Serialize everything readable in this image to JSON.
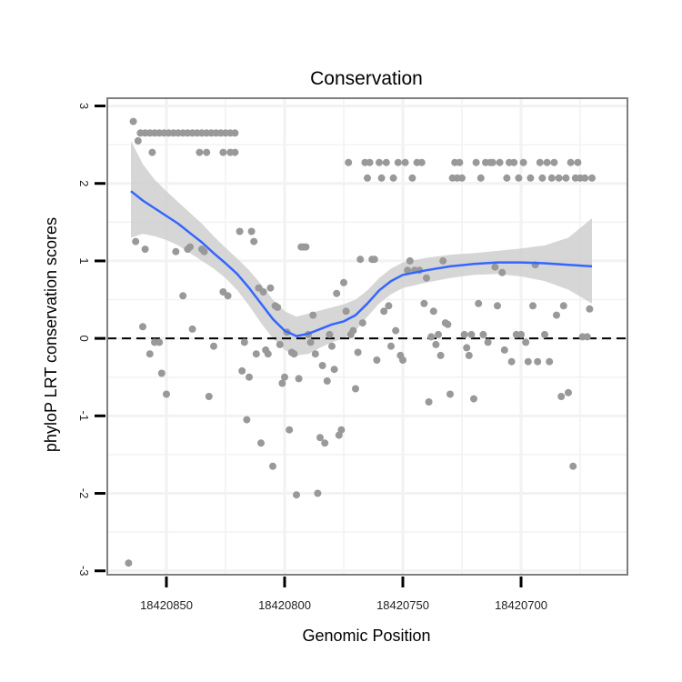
{
  "chart_data": {
    "type": "scatter",
    "title": "Conservation",
    "xlabel": "Genomic Position",
    "ylabel": "phyloP LRT conservation scores",
    "x_reversed": true,
    "xlim": [
      18420875,
      18420655
    ],
    "ylim": [
      -3.05,
      3.1
    ],
    "x_ticks": [
      18420850,
      18420800,
      18420750,
      18420700
    ],
    "x_tick_labels": [
      "18420850",
      "18420800",
      "18420750",
      "18420700"
    ],
    "y_ticks": [
      -3,
      -2,
      -1,
      0,
      1,
      2,
      3
    ],
    "y_tick_labels": [
      "-3",
      "-2",
      "-1",
      "0",
      "1",
      "2",
      "3"
    ],
    "reference_line": {
      "y": 0,
      "style": "dashed"
    },
    "grid": true,
    "colors": {
      "points": "#999999",
      "smooth_line": "#3366ff",
      "confidence_band": "#cccccc",
      "grid": "#f2f2f2",
      "panel_border": "#7f7f7f",
      "reference_line": "#000000"
    },
    "points": [
      {
        "x": 18420864,
        "y": 2.8
      },
      {
        "x": 18420862,
        "y": 2.55
      },
      {
        "x": 18420861,
        "y": 2.65
      },
      {
        "x": 18420859,
        "y": 2.65
      },
      {
        "x": 18420857,
        "y": 2.65
      },
      {
        "x": 18420855,
        "y": 2.65
      },
      {
        "x": 18420853,
        "y": 2.65
      },
      {
        "x": 18420851,
        "y": 2.65
      },
      {
        "x": 18420849,
        "y": 2.65
      },
      {
        "x": 18420847,
        "y": 2.65
      },
      {
        "x": 18420845,
        "y": 2.65
      },
      {
        "x": 18420843,
        "y": 2.65
      },
      {
        "x": 18420841,
        "y": 2.65
      },
      {
        "x": 18420839,
        "y": 2.65
      },
      {
        "x": 18420837,
        "y": 2.65
      },
      {
        "x": 18420835,
        "y": 2.65
      },
      {
        "x": 18420833,
        "y": 2.65
      },
      {
        "x": 18420831,
        "y": 2.65
      },
      {
        "x": 18420829,
        "y": 2.65
      },
      {
        "x": 18420827,
        "y": 2.65
      },
      {
        "x": 18420825,
        "y": 2.65
      },
      {
        "x": 18420823,
        "y": 2.65
      },
      {
        "x": 18420821,
        "y": 2.65
      },
      {
        "x": 18420856,
        "y": 2.4
      },
      {
        "x": 18420836,
        "y": 2.4
      },
      {
        "x": 18420833,
        "y": 2.4
      },
      {
        "x": 18420826,
        "y": 2.4
      },
      {
        "x": 18420823,
        "y": 2.4
      },
      {
        "x": 18420821,
        "y": 2.4
      },
      {
        "x": 18420863,
        "y": 1.25
      },
      {
        "x": 18420860,
        "y": 0.15
      },
      {
        "x": 18420859,
        "y": 1.15
      },
      {
        "x": 18420857,
        "y": -0.2
      },
      {
        "x": 18420855,
        "y": -0.05
      },
      {
        "x": 18420853,
        "y": -0.05
      },
      {
        "x": 18420852,
        "y": -0.45
      },
      {
        "x": 18420850,
        "y": -0.72
      },
      {
        "x": 18420846,
        "y": 1.12
      },
      {
        "x": 18420843,
        "y": 0.55
      },
      {
        "x": 18420841,
        "y": 1.15
      },
      {
        "x": 18420840,
        "y": 1.18
      },
      {
        "x": 18420839,
        "y": 0.12
      },
      {
        "x": 18420835,
        "y": 1.15
      },
      {
        "x": 18420834,
        "y": 1.12
      },
      {
        "x": 18420832,
        "y": -0.75
      },
      {
        "x": 18420830,
        "y": -0.1
      },
      {
        "x": 18420826,
        "y": 0.6
      },
      {
        "x": 18420824,
        "y": 0.55
      },
      {
        "x": 18420819,
        "y": 1.38
      },
      {
        "x": 18420818,
        "y": -0.42
      },
      {
        "x": 18420817,
        "y": -0.05
      },
      {
        "x": 18420816,
        "y": -1.05
      },
      {
        "x": 18420815,
        "y": -0.5
      },
      {
        "x": 18420814,
        "y": 1.38
      },
      {
        "x": 18420813,
        "y": 1.25
      },
      {
        "x": 18420812,
        "y": -0.2
      },
      {
        "x": 18420811,
        "y": 0.65
      },
      {
        "x": 18420810,
        "y": -1.35
      },
      {
        "x": 18420809,
        "y": 0.6
      },
      {
        "x": 18420808,
        "y": -0.15
      },
      {
        "x": 18420807,
        "y": -0.2
      },
      {
        "x": 18420806,
        "y": 0.65
      },
      {
        "x": 18420805,
        "y": -1.65
      },
      {
        "x": 18420804,
        "y": 0.42
      },
      {
        "x": 18420803,
        "y": 0.4
      },
      {
        "x": 18420802,
        "y": -0.08
      },
      {
        "x": 18420801,
        "y": -0.58
      },
      {
        "x": 18420800,
        "y": -0.5
      },
      {
        "x": 18420799,
        "y": 0.08
      },
      {
        "x": 18420798,
        "y": -1.18
      },
      {
        "x": 18420797,
        "y": -0.18
      },
      {
        "x": 18420796,
        "y": -0.2
      },
      {
        "x": 18420795,
        "y": -2.02
      },
      {
        "x": 18420794,
        "y": -0.52
      },
      {
        "x": 18420793,
        "y": 1.18
      },
      {
        "x": 18420792,
        "y": 1.18
      },
      {
        "x": 18420791,
        "y": 1.18
      },
      {
        "x": 18420790,
        "y": 0.05
      },
      {
        "x": 18420789,
        "y": -0.05
      },
      {
        "x": 18420788,
        "y": 0.3
      },
      {
        "x": 18420787,
        "y": -0.2
      },
      {
        "x": 18420786,
        "y": -2.0
      },
      {
        "x": 18420785,
        "y": -1.28
      },
      {
        "x": 18420784,
        "y": -0.35
      },
      {
        "x": 18420783,
        "y": -1.35
      },
      {
        "x": 18420782,
        "y": -0.55
      },
      {
        "x": 18420781,
        "y": 0.05
      },
      {
        "x": 18420780,
        "y": -0.1
      },
      {
        "x": 18420779,
        "y": -0.4
      },
      {
        "x": 18420778,
        "y": 0.58
      },
      {
        "x": 18420777,
        "y": -1.25
      },
      {
        "x": 18420776,
        "y": -1.18
      },
      {
        "x": 18420775,
        "y": 0.72
      },
      {
        "x": 18420774,
        "y": 0.35
      },
      {
        "x": 18420773,
        "y": 2.27
      },
      {
        "x": 18420772,
        "y": 0.05
      },
      {
        "x": 18420771,
        "y": 0.1
      },
      {
        "x": 18420770,
        "y": -0.65
      },
      {
        "x": 18420769,
        "y": -0.18
      },
      {
        "x": 18420768,
        "y": 1.02
      },
      {
        "x": 18420767,
        "y": 0.2
      },
      {
        "x": 18420766,
        "y": 2.27
      },
      {
        "x": 18420765,
        "y": 2.07
      },
      {
        "x": 18420764,
        "y": 2.27
      },
      {
        "x": 18420763,
        "y": 1.02
      },
      {
        "x": 18420762,
        "y": 1.02
      },
      {
        "x": 18420761,
        "y": -0.28
      },
      {
        "x": 18420760,
        "y": 2.27
      },
      {
        "x": 18420759,
        "y": 2.07
      },
      {
        "x": 18420758,
        "y": 0.35
      },
      {
        "x": 18420757,
        "y": 2.27
      },
      {
        "x": 18420756,
        "y": 0.42
      },
      {
        "x": 18420755,
        "y": -0.1
      },
      {
        "x": 18420754,
        "y": 2.07
      },
      {
        "x": 18420753,
        "y": 0.1
      },
      {
        "x": 18420752,
        "y": 2.27
      },
      {
        "x": 18420751,
        "y": -0.22
      },
      {
        "x": 18420750,
        "y": -0.28
      },
      {
        "x": 18420749,
        "y": 2.27
      },
      {
        "x": 18420748,
        "y": 0.88
      },
      {
        "x": 18420747,
        "y": 1.0
      },
      {
        "x": 18420746,
        "y": 2.07
      },
      {
        "x": 18420745,
        "y": 0.88
      },
      {
        "x": 18420744,
        "y": 2.27
      },
      {
        "x": 18420743,
        "y": 0.88
      },
      {
        "x": 18420742,
        "y": 2.27
      },
      {
        "x": 18420741,
        "y": 0.45
      },
      {
        "x": 18420740,
        "y": 0.78
      },
      {
        "x": 18420739,
        "y": -0.82
      },
      {
        "x": 18420738,
        "y": 0.02
      },
      {
        "x": 18420737,
        "y": 0.35
      },
      {
        "x": 18420736,
        "y": -0.08
      },
      {
        "x": 18420735,
        "y": 0.05
      },
      {
        "x": 18420734,
        "y": -0.22
      },
      {
        "x": 18420733,
        "y": 1.0
      },
      {
        "x": 18420732,
        "y": 0.2
      },
      {
        "x": 18420731,
        "y": 0.18
      },
      {
        "x": 18420730,
        "y": -0.72
      },
      {
        "x": 18420729,
        "y": 2.07
      },
      {
        "x": 18420728,
        "y": 2.27
      },
      {
        "x": 18420727,
        "y": 2.07
      },
      {
        "x": 18420726,
        "y": 2.27
      },
      {
        "x": 18420725,
        "y": 2.07
      },
      {
        "x": 18420724,
        "y": 0.05
      },
      {
        "x": 18420723,
        "y": -0.12
      },
      {
        "x": 18420722,
        "y": -0.22
      },
      {
        "x": 18420721,
        "y": 0.05
      },
      {
        "x": 18420720,
        "y": -0.78
      },
      {
        "x": 18420719,
        "y": 2.27
      },
      {
        "x": 18420718,
        "y": 0.45
      },
      {
        "x": 18420717,
        "y": 2.07
      },
      {
        "x": 18420716,
        "y": 0.05
      },
      {
        "x": 18420715,
        "y": 2.27
      },
      {
        "x": 18420714,
        "y": -0.05
      },
      {
        "x": 18420713,
        "y": 2.27
      },
      {
        "x": 18420712,
        "y": 2.27
      },
      {
        "x": 18420711,
        "y": 0.92
      },
      {
        "x": 18420710,
        "y": 0.42
      },
      {
        "x": 18420709,
        "y": 2.27
      },
      {
        "x": 18420708,
        "y": 0.85
      },
      {
        "x": 18420707,
        "y": -0.15
      },
      {
        "x": 18420706,
        "y": 2.07
      },
      {
        "x": 18420705,
        "y": 2.27
      },
      {
        "x": 18420704,
        "y": -0.3
      },
      {
        "x": 18420703,
        "y": 2.27
      },
      {
        "x": 18420702,
        "y": 0.05
      },
      {
        "x": 18420701,
        "y": 2.07
      },
      {
        "x": 18420700,
        "y": 0.05
      },
      {
        "x": 18420699,
        "y": 2.27
      },
      {
        "x": 18420698,
        "y": -0.05
      },
      {
        "x": 18420697,
        "y": -0.3
      },
      {
        "x": 18420696,
        "y": 2.07
      },
      {
        "x": 18420695,
        "y": 0.42
      },
      {
        "x": 18420694,
        "y": 0.95
      },
      {
        "x": 18420693,
        "y": -0.3
      },
      {
        "x": 18420692,
        "y": 2.27
      },
      {
        "x": 18420691,
        "y": 2.07
      },
      {
        "x": 18420690,
        "y": 0.05
      },
      {
        "x": 18420689,
        "y": 2.27
      },
      {
        "x": 18420688,
        "y": -0.3
      },
      {
        "x": 18420687,
        "y": 2.07
      },
      {
        "x": 18420686,
        "y": 2.27
      },
      {
        "x": 18420685,
        "y": 0.3
      },
      {
        "x": 18420684,
        "y": 2.07
      },
      {
        "x": 18420683,
        "y": -0.75
      },
      {
        "x": 18420682,
        "y": 0.42
      },
      {
        "x": 18420681,
        "y": 2.07
      },
      {
        "x": 18420680,
        "y": -0.7
      },
      {
        "x": 18420679,
        "y": 2.27
      },
      {
        "x": 18420678,
        "y": -1.65
      },
      {
        "x": 18420677,
        "y": 2.07
      },
      {
        "x": 18420676,
        "y": 2.27
      },
      {
        "x": 18420675,
        "y": 2.07
      },
      {
        "x": 18420674,
        "y": 0.02
      },
      {
        "x": 18420673,
        "y": 2.07
      },
      {
        "x": 18420672,
        "y": 0.02
      },
      {
        "x": 18420671,
        "y": 0.38
      },
      {
        "x": 18420670,
        "y": 2.07
      },
      {
        "x": 18420866,
        "y": -2.9
      }
    ],
    "smooth": {
      "x": [
        18420865,
        18420860,
        18420855,
        18420850,
        18420845,
        18420840,
        18420835,
        18420830,
        18420825,
        18420820,
        18420815,
        18420810,
        18420805,
        18420800,
        18420795,
        18420790,
        18420785,
        18420780,
        18420775,
        18420770,
        18420765,
        18420760,
        18420755,
        18420750,
        18420740,
        18420730,
        18420720,
        18420710,
        18420700,
        18420690,
        18420680,
        18420670
      ],
      "fit": [
        1.9,
        1.78,
        1.68,
        1.58,
        1.48,
        1.36,
        1.24,
        1.1,
        0.97,
        0.83,
        0.65,
        0.45,
        0.25,
        0.1,
        0.03,
        0.06,
        0.12,
        0.18,
        0.22,
        0.3,
        0.45,
        0.62,
        0.74,
        0.82,
        0.88,
        0.93,
        0.96,
        0.98,
        0.98,
        0.97,
        0.95,
        0.93
      ],
      "lower": [
        1.3,
        1.35,
        1.32,
        1.27,
        1.2,
        1.1,
        1.0,
        0.9,
        0.78,
        0.62,
        0.42,
        0.2,
        0.0,
        -0.15,
        -0.22,
        -0.2,
        -0.12,
        -0.05,
        0.0,
        0.1,
        0.28,
        0.45,
        0.57,
        0.65,
        0.72,
        0.78,
        0.82,
        0.83,
        0.8,
        0.74,
        0.63,
        0.45
      ],
      "upper": [
        2.55,
        2.25,
        2.05,
        1.9,
        1.76,
        1.62,
        1.48,
        1.32,
        1.17,
        1.03,
        0.88,
        0.7,
        0.5,
        0.35,
        0.28,
        0.32,
        0.36,
        0.4,
        0.44,
        0.5,
        0.62,
        0.78,
        0.9,
        0.98,
        1.04,
        1.08,
        1.1,
        1.13,
        1.16,
        1.2,
        1.3,
        1.55
      ]
    }
  }
}
